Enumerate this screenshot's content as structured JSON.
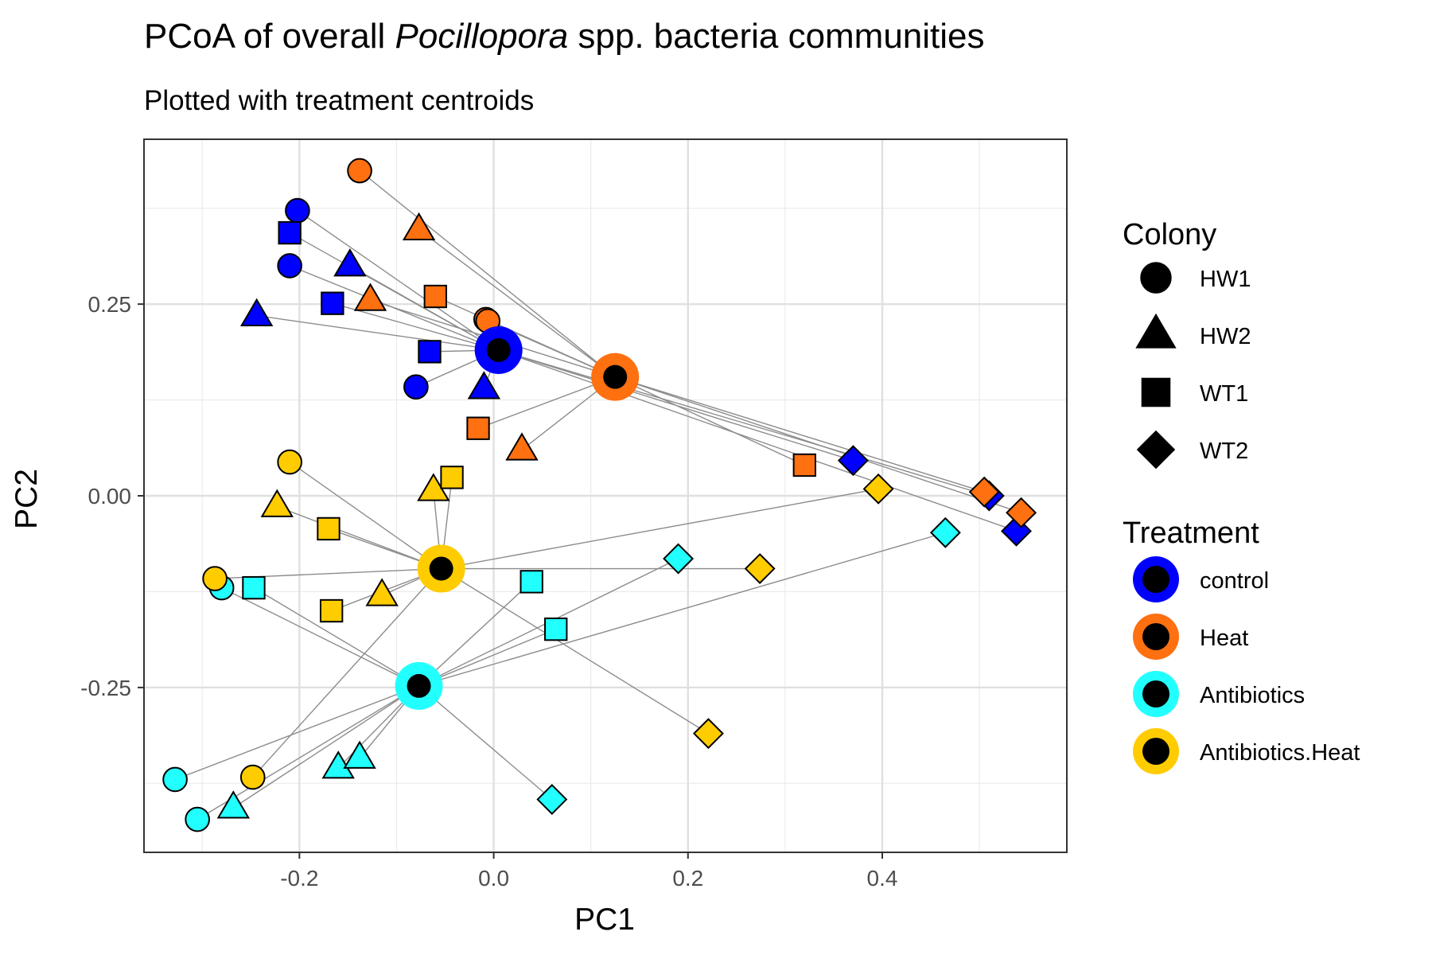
{
  "chart_data": {
    "type": "scatter",
    "title_prefix": "PCoA of overall ",
    "title_italic": "Pocillopora",
    "title_suffix": " spp. bacteria communities",
    "subtitle": "Plotted with treatment centroids",
    "xlabel": "PC1",
    "ylabel": "PC2",
    "xlim": [
      -0.36,
      0.59
    ],
    "ylim": [
      -0.465,
      0.465
    ],
    "xticks": [
      -0.2,
      0.0,
      0.2,
      0.4
    ],
    "xtick_labels": [
      "-0.2",
      "0.0",
      "0.2",
      "0.4"
    ],
    "yticks": [
      -0.25,
      0.0,
      0.25
    ],
    "ytick_labels": [
      "-0.25",
      "0.00",
      "0.25"
    ],
    "grid": true,
    "colony_legend": {
      "title": "Colony",
      "items": [
        {
          "label": "HW1",
          "shape": "circle"
        },
        {
          "label": "HW2",
          "shape": "triangle"
        },
        {
          "label": "WT1",
          "shape": "square"
        },
        {
          "label": "WT2",
          "shape": "diamond"
        }
      ]
    },
    "treatment_legend": {
      "title": "Treatment",
      "items": [
        {
          "label": "control",
          "color": "#0000FF"
        },
        {
          "label": "Heat",
          "color": "#FF7010"
        },
        {
          "label": "Antibiotics",
          "color": "#22FFFF"
        },
        {
          "label": "Antibiotics.Heat",
          "color": "#FFCC00"
        }
      ]
    },
    "centroids": [
      {
        "treatment": "control",
        "x": 0.005,
        "y": 0.19,
        "color": "#0000FF"
      },
      {
        "treatment": "Heat",
        "x": 0.125,
        "y": 0.155,
        "color": "#FF7010"
      },
      {
        "treatment": "Antibiotics",
        "x": -0.077,
        "y": -0.248,
        "color": "#22FFFF"
      },
      {
        "treatment": "Antibiotics.Heat",
        "x": -0.054,
        "y": -0.095,
        "color": "#FFCC00"
      }
    ],
    "series": [
      {
        "name": "control",
        "color": "#0000FF",
        "points": [
          {
            "x": -0.202,
            "y": 0.372,
            "shape": "circle"
          },
          {
            "x": -0.21,
            "y": 0.3,
            "shape": "circle"
          },
          {
            "x": -0.08,
            "y": 0.142,
            "shape": "circle"
          },
          {
            "x": -0.148,
            "y": 0.3,
            "shape": "triangle"
          },
          {
            "x": -0.244,
            "y": 0.235,
            "shape": "triangle"
          },
          {
            "x": -0.01,
            "y": 0.14,
            "shape": "triangle"
          },
          {
            "x": -0.21,
            "y": 0.343,
            "shape": "square"
          },
          {
            "x": -0.166,
            "y": 0.251,
            "shape": "square"
          },
          {
            "x": -0.066,
            "y": 0.188,
            "shape": "square"
          },
          {
            "x": 0.37,
            "y": 0.046,
            "shape": "diamond"
          },
          {
            "x": 0.51,
            "y": 0.0,
            "shape": "diamond"
          },
          {
            "x": 0.538,
            "y": -0.046,
            "shape": "diamond"
          }
        ]
      },
      {
        "name": "Heat",
        "color": "#FF7010",
        "points": [
          {
            "x": -0.138,
            "y": 0.424,
            "shape": "circle"
          },
          {
            "x": -0.008,
            "y": 0.23,
            "shape": "circle"
          },
          {
            "x": -0.006,
            "y": 0.228,
            "shape": "circle"
          },
          {
            "x": -0.077,
            "y": 0.347,
            "shape": "triangle"
          },
          {
            "x": -0.127,
            "y": 0.255,
            "shape": "triangle"
          },
          {
            "x": 0.029,
            "y": 0.06,
            "shape": "triangle"
          },
          {
            "x": -0.06,
            "y": 0.26,
            "shape": "square"
          },
          {
            "x": -0.016,
            "y": 0.088,
            "shape": "square"
          },
          {
            "x": 0.32,
            "y": 0.04,
            "shape": "square"
          },
          {
            "x": 0.505,
            "y": 0.005,
            "shape": "diamond"
          },
          {
            "x": 0.543,
            "y": -0.022,
            "shape": "diamond"
          }
        ]
      },
      {
        "name": "Antibiotics",
        "color": "#22FFFF",
        "points": [
          {
            "x": -0.28,
            "y": -0.12,
            "shape": "circle"
          },
          {
            "x": -0.328,
            "y": -0.37,
            "shape": "circle"
          },
          {
            "x": -0.305,
            "y": -0.422,
            "shape": "circle"
          },
          {
            "x": -0.16,
            "y": -0.355,
            "shape": "triangle"
          },
          {
            "x": -0.138,
            "y": -0.342,
            "shape": "triangle"
          },
          {
            "x": -0.268,
            "y": -0.407,
            "shape": "triangle"
          },
          {
            "x": -0.247,
            "y": -0.12,
            "shape": "square"
          },
          {
            "x": 0.039,
            "y": -0.112,
            "shape": "square"
          },
          {
            "x": 0.064,
            "y": -0.174,
            "shape": "square"
          },
          {
            "x": 0.19,
            "y": -0.082,
            "shape": "diamond"
          },
          {
            "x": 0.465,
            "y": -0.048,
            "shape": "diamond"
          },
          {
            "x": 0.06,
            "y": -0.396,
            "shape": "diamond"
          }
        ]
      },
      {
        "name": "Antibiotics.Heat",
        "color": "#FFCC00",
        "points": [
          {
            "x": -0.21,
            "y": 0.044,
            "shape": "circle"
          },
          {
            "x": -0.287,
            "y": -0.108,
            "shape": "circle"
          },
          {
            "x": -0.248,
            "y": -0.367,
            "shape": "circle"
          },
          {
            "x": -0.223,
            "y": -0.014,
            "shape": "triangle"
          },
          {
            "x": -0.062,
            "y": 0.007,
            "shape": "triangle"
          },
          {
            "x": -0.115,
            "y": -0.13,
            "shape": "triangle"
          },
          {
            "x": -0.043,
            "y": 0.024,
            "shape": "square"
          },
          {
            "x": -0.17,
            "y": -0.043,
            "shape": "square"
          },
          {
            "x": -0.167,
            "y": -0.15,
            "shape": "square"
          },
          {
            "x": 0.396,
            "y": 0.009,
            "shape": "diamond"
          },
          {
            "x": 0.274,
            "y": -0.095,
            "shape": "diamond"
          },
          {
            "x": 0.221,
            "y": -0.31,
            "shape": "diamond"
          }
        ]
      }
    ]
  }
}
